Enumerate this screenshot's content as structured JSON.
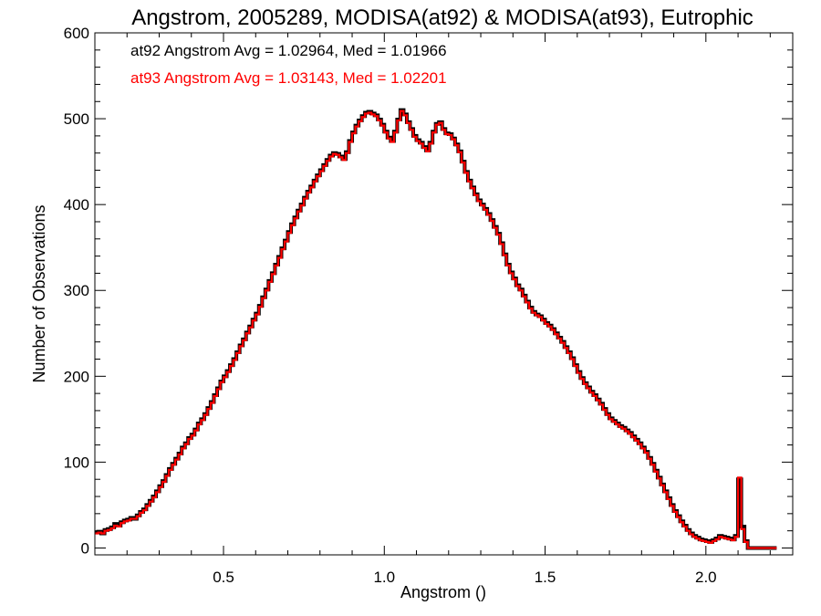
{
  "chart_data": {
    "type": "line",
    "style": "step-histogram",
    "title": "Angstrom, 2005289, MODISA(at92) & MODISA(at93), Eutrophic",
    "xlabel": "Angstrom ()",
    "ylabel": "Number of Observations",
    "xlim": [
      0.1,
      2.27
    ],
    "ylim": [
      -8,
      600
    ],
    "xticks": [
      0.5,
      1.0,
      1.5,
      2.0
    ],
    "xtick_labels": [
      "0.5",
      "1.0",
      "1.5",
      "2.0"
    ],
    "yticks": [
      0,
      100,
      200,
      300,
      400,
      500,
      600
    ],
    "ytick_labels": [
      "0",
      "100",
      "200",
      "300",
      "400",
      "500",
      "600"
    ],
    "grid": false,
    "legend_position": "top-left",
    "bin_start": 0.1,
    "bin_width": 0.01,
    "series": [
      {
        "name": "at92",
        "color": "#000000",
        "annotation": "at92 Angstrom Avg = 1.02964, Med = 1.01966",
        "values": [
          18,
          19,
          17,
          21,
          22,
          24,
          28,
          26,
          30,
          32,
          33,
          35,
          34,
          38,
          42,
          45,
          50,
          55,
          60,
          66,
          72,
          78,
          85,
          92,
          98,
          104,
          110,
          117,
          122,
          128,
          132,
          138,
          145,
          150,
          156,
          163,
          170,
          178,
          186,
          194,
          200,
          206,
          213,
          220,
          228,
          236,
          243,
          251,
          258,
          266,
          273,
          282,
          292,
          301,
          311,
          320,
          330,
          339,
          349,
          358,
          368,
          377,
          385,
          393,
          400,
          408,
          415,
          421,
          428,
          434,
          440,
          446,
          452,
          457,
          460,
          459,
          456,
          453,
          461,
          474,
          484,
          492,
          498,
          503,
          507,
          508,
          506,
          504,
          499,
          493,
          485,
          478,
          474,
          485,
          499,
          510,
          505,
          496,
          488,
          480,
          475,
          472,
          467,
          463,
          472,
          485,
          494,
          496,
          488,
          483,
          482,
          477,
          470,
          462,
          450,
          438,
          428,
          420,
          412,
          405,
          400,
          395,
          389,
          382,
          374,
          366,
          355,
          342,
          330,
          321,
          314,
          306,
          301,
          294,
          287,
          280,
          275,
          272,
          270,
          266,
          262,
          259,
          255,
          250,
          245,
          240,
          234,
          228,
          221,
          213,
          205,
          198,
          192,
          187,
          182,
          178,
          173,
          168,
          162,
          156,
          151,
          148,
          145,
          142,
          140,
          137,
          134,
          130,
          126,
          122,
          117,
          112,
          105,
          98,
          90,
          82,
          74,
          66,
          58,
          50,
          43,
          37,
          31,
          26,
          21,
          17,
          14,
          12,
          10,
          9,
          8,
          7,
          9,
          11,
          14,
          13,
          12,
          11,
          10,
          14,
          80,
          25,
          8,
          0,
          0,
          0,
          0,
          0,
          0,
          0,
          0,
          0
        ]
      },
      {
        "name": "at93",
        "color": "#ff0000",
        "annotation": "at93 Angstrom Avg = 1.03143, Med = 1.02201",
        "values": [
          17,
          18,
          17,
          20,
          21,
          23,
          26,
          25,
          29,
          31,
          32,
          34,
          34,
          37,
          41,
          44,
          49,
          54,
          59,
          65,
          71,
          77,
          84,
          91,
          97,
          103,
          109,
          116,
          121,
          127,
          131,
          137,
          144,
          149,
          155,
          162,
          169,
          177,
          185,
          193,
          199,
          205,
          212,
          219,
          227,
          235,
          242,
          250,
          257,
          265,
          272,
          281,
          291,
          300,
          310,
          319,
          329,
          338,
          348,
          357,
          367,
          376,
          384,
          392,
          399,
          407,
          414,
          420,
          427,
          433,
          439,
          445,
          451,
          456,
          459,
          458,
          455,
          452,
          460,
          473,
          483,
          491,
          497,
          502,
          506,
          507,
          505,
          503,
          498,
          492,
          484,
          477,
          473,
          484,
          498,
          509,
          504,
          495,
          487,
          479,
          474,
          471,
          466,
          462,
          471,
          484,
          493,
          495,
          487,
          482,
          481,
          476,
          469,
          461,
          449,
          437,
          427,
          419,
          411,
          404,
          399,
          394,
          388,
          381,
          373,
          365,
          354,
          341,
          329,
          320,
          313,
          305,
          300,
          293,
          286,
          279,
          274,
          271,
          269,
          265,
          261,
          258,
          254,
          249,
          244,
          239,
          233,
          227,
          220,
          212,
          204,
          197,
          191,
          186,
          181,
          177,
          172,
          167,
          161,
          155,
          150,
          147,
          144,
          141,
          139,
          136,
          133,
          129,
          125,
          121,
          116,
          111,
          104,
          97,
          89,
          81,
          73,
          65,
          57,
          49,
          42,
          36,
          30,
          25,
          20,
          16,
          13,
          11,
          9,
          8,
          7,
          6,
          8,
          10,
          13,
          12,
          11,
          10,
          9,
          13,
          82,
          22,
          7,
          0,
          0,
          0,
          0,
          0,
          0,
          0,
          0,
          0
        ]
      }
    ]
  }
}
